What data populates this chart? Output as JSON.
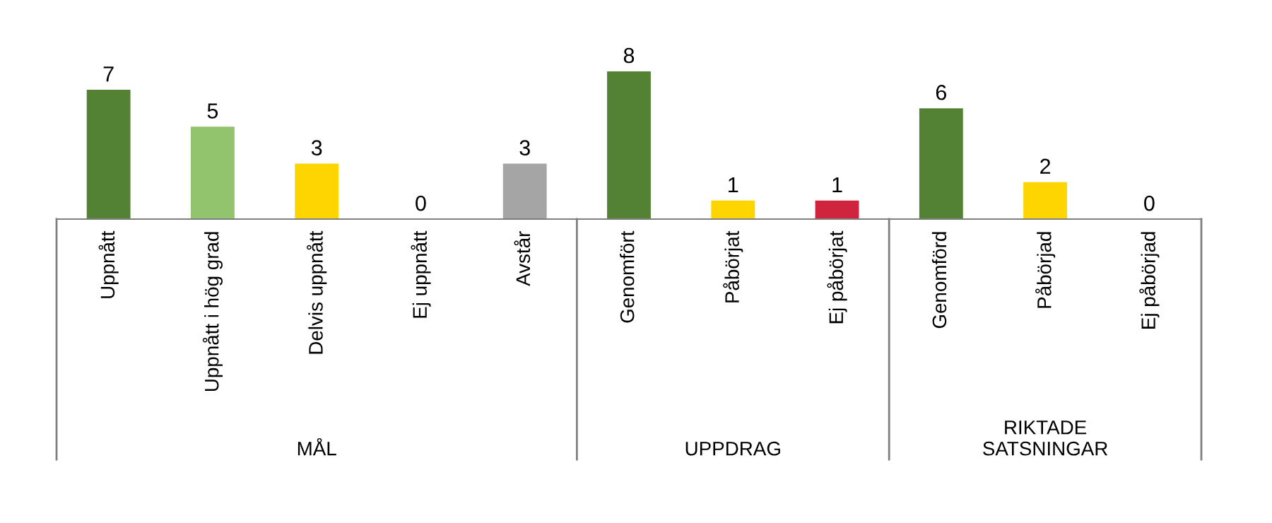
{
  "chart_data": {
    "type": "bar",
    "categories": [
      "Uppnått",
      "Uppnått i hög grad",
      "Delvis uppnått",
      "Ej uppnått",
      "Avstår",
      "Genomfört",
      "Påbörjat",
      "Ej påbörjat",
      "Genomförd",
      "Påbörjad",
      "Ej påbörjad"
    ],
    "values": [
      7,
      5,
      3,
      0,
      3,
      8,
      1,
      1,
      6,
      2,
      0
    ],
    "colors": [
      "#548235",
      "#92c46e",
      "#ffd500",
      "#c0203c",
      "#a5a5a5",
      "#548235",
      "#ffd500",
      "#d0243e",
      "#548235",
      "#ffd500",
      "#c0203c"
    ],
    "annotations": [
      "MÅL",
      "UPPDRAG",
      "RIKTADE\nSATSNINGAR"
    ],
    "tick_labels": "x",
    "data_labels": true,
    "grid": false,
    "legend": false
  }
}
